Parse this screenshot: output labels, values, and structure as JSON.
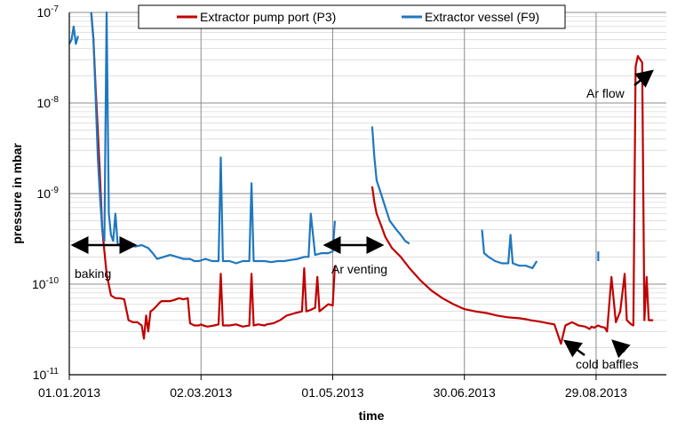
{
  "chart_data": {
    "type": "line",
    "xlabel": "time",
    "ylabel": "pressure in mbar",
    "y_scale": "log",
    "ylim": [
      1e-11,
      1e-07
    ],
    "y_ticks": [
      {
        "value": 1e-11,
        "mantissa": "10",
        "exp": "-11"
      },
      {
        "value": 1e-10,
        "mantissa": "10",
        "exp": "-10"
      },
      {
        "value": 1e-09,
        "mantissa": "10",
        "exp": "-9"
      },
      {
        "value": 1e-08,
        "mantissa": "10",
        "exp": "-8"
      },
      {
        "value": 1e-07,
        "mantissa": "10",
        "exp": "-7"
      }
    ],
    "xlim": [
      "01.01.2013",
      "30.09.2013"
    ],
    "x_ticks": [
      "01.01.2013",
      "02.03.2013",
      "01.05.2013",
      "30.06.2013",
      "29.08.2013"
    ],
    "grid": true,
    "legend_position": "top",
    "series": [
      {
        "name": "Extractor pump port (P3)",
        "color": "#c00000",
        "x": [
          "2013-01-01",
          "2013-01-03",
          "2013-01-05",
          "2013-01-08",
          "2013-01-10",
          "2013-01-11",
          "2013-01-12",
          "2013-01-13",
          "2013-01-14",
          "2013-01-15",
          "2013-01-16",
          "2013-01-18",
          "2013-01-20",
          "2013-01-22",
          "2013-01-24",
          "2013-01-26",
          "2013-01-28",
          "2013-01-30",
          "2013-02-01",
          "2013-02-03",
          "2013-02-04",
          "2013-02-05",
          "2013-02-06",
          "2013-02-07",
          "2013-02-08",
          "2013-02-09",
          "2013-02-10",
          "2013-02-11",
          "2013-02-12",
          "2013-02-14",
          "2013-02-16",
          "2013-02-18",
          "2013-02-20",
          "2013-02-22",
          "2013-02-24",
          "2013-02-25",
          "2013-02-26",
          "2013-02-27",
          "2013-02-28",
          "2013-03-01",
          "2013-03-02",
          "2013-03-03",
          "2013-03-05",
          "2013-03-08",
          "2013-03-10",
          "2013-03-11",
          "2013-03-12",
          "2013-03-15",
          "2013-03-18",
          "2013-03-21",
          "2013-03-24",
          "2013-03-25",
          "2013-03-26",
          "2013-03-28",
          "2013-03-31",
          "2013-04-01",
          "2013-04-04",
          "2013-04-07",
          "2013-04-10",
          "2013-04-14",
          "2013-04-17",
          "2013-04-18",
          "2013-04-19",
          "2013-04-21",
          "2013-04-23",
          "2013-04-24",
          "2013-04-25",
          "2013-04-27",
          "2013-04-29",
          "2013-05-01",
          "2013-05-02",
          "2013-05-02",
          "2013-05-19",
          "2013-05-20",
          "2013-05-21",
          "2013-05-23",
          "2013-05-25",
          "2013-05-28",
          "2013-06-01",
          "2013-06-05",
          "2013-06-10",
          "2013-06-15",
          "2013-06-20",
          "2013-06-25",
          "2013-06-30",
          "2013-07-05",
          "2013-07-10",
          "2013-07-15",
          "2013-07-20",
          "2013-07-25",
          "2013-07-28",
          "2013-07-30",
          "2013-08-02",
          "2013-08-05",
          "2013-08-07",
          "2013-08-10",
          "2013-08-13",
          "2013-08-15",
          "2013-08-18",
          "2013-08-21",
          "2013-08-24",
          "2013-08-25",
          "2013-08-26",
          "2013-08-27",
          "2013-08-28",
          "2013-08-30",
          "2013-08-31",
          "2013-09-02",
          "2013-09-03",
          "2013-09-05",
          "2013-09-07",
          "2013-09-09",
          "2013-09-11",
          "2013-09-12",
          "2013-09-13",
          "2013-09-14",
          "2013-09-15",
          "2013-09-16",
          "2013-09-17",
          "2013-09-19",
          "2013-09-20",
          "2013-09-21",
          "2013-09-22",
          "2013-09-24"
        ],
        "y": [
          null,
          null,
          null,
          null,
          null,
          1e-07,
          5e-08,
          1.5e-08,
          5e-09,
          1.5e-09,
          4e-10,
          1.3e-10,
          7.5e-11,
          7e-11,
          7e-11,
          6.8e-11,
          4e-11,
          3.8e-11,
          3.8e-11,
          3.5e-11,
          2.5e-11,
          4.5e-11,
          3e-11,
          5e-11,
          5.2e-11,
          5.5e-11,
          5.8e-11,
          6.2e-11,
          6.5e-11,
          6.5e-11,
          6.5e-11,
          6.7e-11,
          7e-11,
          6.8e-11,
          7e-11,
          3.7e-11,
          3.6e-11,
          3.5e-11,
          3.5e-11,
          3.5e-11,
          3.6e-11,
          3.5e-11,
          3.4e-11,
          3.5e-11,
          3.6e-11,
          1.3e-10,
          3.5e-11,
          3.5e-11,
          3.6e-11,
          3.4e-11,
          3.5e-11,
          1.3e-10,
          3.5e-11,
          3.6e-11,
          3.5e-11,
          3.6e-11,
          3.7e-11,
          4e-11,
          4.5e-11,
          4.8e-11,
          5e-11,
          1.5e-10,
          5e-11,
          5.2e-11,
          5.5e-11,
          1.2e-10,
          5e-11,
          5.5e-11,
          6e-11,
          5.8e-11,
          1.6e-10,
          null,
          1.2e-09,
          8e-10,
          6e-10,
          4.5e-10,
          3.3e-10,
          2.5e-10,
          2e-10,
          1.5e-10,
          1.1e-10,
          8.5e-11,
          7e-11,
          6e-11,
          5.3e-11,
          5e-11,
          4.8e-11,
          4.5e-11,
          4.3e-11,
          4.2e-11,
          4.1e-11,
          4e-11,
          3.9e-11,
          3.8e-11,
          3.7e-11,
          3.6e-11,
          2.2e-11,
          3.5e-11,
          3.8e-11,
          3.5e-11,
          3.4e-11,
          3.3e-11,
          3.2e-11,
          3.4e-11,
          3.3e-11,
          3.5e-11,
          3.4e-11,
          3.3e-11,
          3e-11,
          1.2e-10,
          3.8e-11,
          5e-11,
          1.3e-10,
          4e-11,
          3.8e-11,
          3.6e-11,
          3.5e-11,
          2.5e-08,
          3.3e-08,
          2.8e-08,
          4e-11,
          1.2e-10,
          4e-11,
          4e-11
        ]
      },
      {
        "name": "Extractor vessel (F9)",
        "color": "#1f77c0",
        "x": [
          "2013-01-01",
          "2013-01-02",
          "2013-01-03",
          "2013-01-04",
          "2013-01-05",
          "2013-01-06",
          "2013-01-07",
          "2013-01-08",
          "2013-01-09",
          "2013-01-10",
          "2013-01-11",
          "2013-01-12",
          "2013-01-13",
          "2013-01-14",
          "2013-01-15",
          "2013-01-16",
          "2013-01-17",
          "2013-01-18",
          "2013-01-19",
          "2013-01-20",
          "2013-01-21",
          "2013-01-22",
          "2013-01-23",
          "2013-01-25",
          "2013-01-28",
          "2013-01-31",
          "2013-02-03",
          "2013-02-06",
          "2013-02-08",
          "2013-02-10",
          "2013-02-13",
          "2013-02-16",
          "2013-02-19",
          "2013-02-22",
          "2013-02-25",
          "2013-02-27",
          "2013-03-01",
          "2013-03-04",
          "2013-03-07",
          "2013-03-10",
          "2013-03-11",
          "2013-03-12",
          "2013-03-15",
          "2013-03-18",
          "2013-03-21",
          "2013-03-24",
          "2013-03-25",
          "2013-03-26",
          "2013-03-28",
          "2013-03-31",
          "2013-04-03",
          "2013-04-06",
          "2013-04-09",
          "2013-04-12",
          "2013-04-15",
          "2013-04-18",
          "2013-04-20",
          "2013-04-21",
          "2013-04-23",
          "2013-04-26",
          "2013-04-29",
          "2013-05-01",
          "2013-05-02",
          "2013-05-02",
          "2013-05-19",
          "2013-05-20",
          "2013-05-21",
          "2013-05-23",
          "2013-05-25",
          "2013-05-27",
          "2013-05-30",
          "2013-06-01",
          "2013-06-03",
          "2013-06-05",
          "2013-06-05",
          "2013-07-08",
          "2013-07-09",
          "2013-07-11",
          "2013-07-14",
          "2013-07-17",
          "2013-07-20",
          "2013-07-21",
          "2013-07-22",
          "2013-07-25",
          "2013-07-28",
          "2013-07-31",
          "2013-08-02",
          "2013-08-02",
          "2013-08-30",
          "2013-08-30",
          "2013-08-31",
          "2013-09-14",
          "2013-09-14"
        ],
        "y": [
          4.5e-08,
          5e-08,
          7e-08,
          4.5e-08,
          5.5e-08,
          null,
          null,
          null,
          null,
          null,
          1e-07,
          5e-08,
          1.2e-08,
          2.5e-09,
          9e-10,
          4e-10,
          3e-10,
          1e-07,
          6e-10,
          3.5e-10,
          3e-10,
          6e-10,
          2.8e-10,
          2.7e-10,
          2.8e-10,
          2.6e-10,
          2.7e-10,
          2.5e-10,
          2.2e-10,
          1.9e-10,
          2e-10,
          2.1e-10,
          2e-10,
          1.9e-10,
          1.9e-10,
          1.8e-10,
          1.8e-10,
          1.9e-10,
          1.8e-10,
          1.8e-10,
          2.5e-09,
          1.8e-10,
          1.8e-10,
          1.7e-10,
          1.8e-10,
          1.8e-10,
          1.3e-09,
          1.8e-10,
          1.8e-10,
          1.8e-10,
          1.75e-10,
          1.8e-10,
          1.8e-10,
          1.85e-10,
          1.9e-10,
          2e-10,
          2e-10,
          6e-10,
          2.1e-10,
          2.2e-10,
          2.2e-10,
          2.3e-10,
          5e-10,
          null,
          5.5e-09,
          2.5e-09,
          1.4e-09,
          1e-09,
          7e-10,
          5e-10,
          4e-10,
          3.5e-10,
          3e-10,
          2.8e-10,
          null,
          4e-10,
          2.2e-10,
          2e-10,
          1.8e-10,
          1.7e-10,
          1.7e-10,
          3.5e-10,
          1.7e-10,
          1.6e-10,
          1.6e-10,
          1.5e-10,
          1.8e-10,
          null,
          2.3e-10,
          1.8e-10,
          null,
          4e-10,
          null
        ]
      }
    ],
    "annotations": [
      {
        "text": "baking"
      },
      {
        "text": "Ar venting"
      },
      {
        "text": "cold baffles"
      },
      {
        "text": "Ar flow"
      }
    ]
  }
}
